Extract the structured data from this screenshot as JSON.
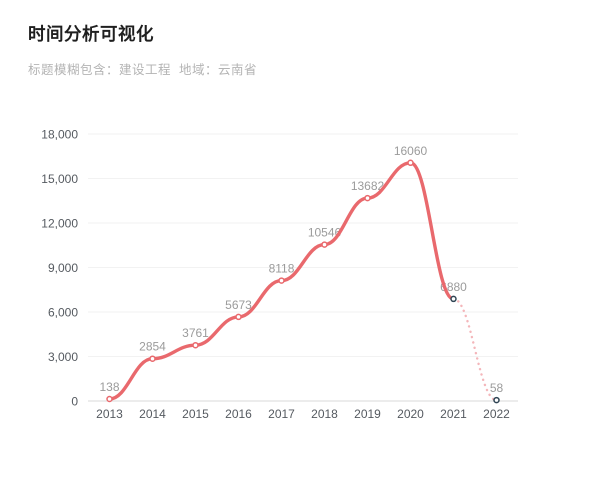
{
  "header": {
    "title": "时间分析可视化",
    "subtitle": "标题模糊包含：建设工程  地域：云南省"
  },
  "chart_data": {
    "type": "line",
    "title": "时间分析可视化",
    "subtitle": "标题模糊包含：建设工程  地域：云南省",
    "categories": [
      "2013",
      "2014",
      "2015",
      "2016",
      "2017",
      "2018",
      "2019",
      "2020",
      "2021",
      "2022"
    ],
    "values": [
      138,
      2854,
      3761,
      5673,
      8118,
      10546,
      13682,
      16060,
      6880,
      58
    ],
    "value_labels": [
      "138",
      "2854",
      "3761",
      "5673",
      "8118",
      "10546",
      "13682",
      "16060",
      "6880",
      "58"
    ],
    "y_ticks": [
      {
        "value": 0,
        "label": "0"
      },
      {
        "value": 3000,
        "label": "3,000"
      },
      {
        "value": 6000,
        "label": "6,000"
      },
      {
        "value": 9000,
        "label": "9,000"
      },
      {
        "value": 12000,
        "label": "12,000"
      },
      {
        "value": 15000,
        "label": "15,000"
      },
      {
        "value": 18000,
        "label": "18,000"
      }
    ],
    "ylim": [
      0,
      18000
    ],
    "xlabel": "",
    "ylabel": "",
    "grid": true,
    "legend": false,
    "smooth": true,
    "solid_until_index": 8,
    "style": {
      "line_color": "#e9696d",
      "forecast_line_color": "#f4b6ba",
      "forecast_style": "dotted",
      "marker_fill": "#ffffff",
      "marker_stroke_main": "#e9696d",
      "marker_stroke_end": "#2f4554",
      "end_marker_indexes": [
        8,
        9
      ],
      "grid_color": "#f2f2f2",
      "axis_line_color": "#d9d9d9",
      "axis_label_color": "#555a60",
      "value_label_color": "#9b9b9b"
    }
  }
}
